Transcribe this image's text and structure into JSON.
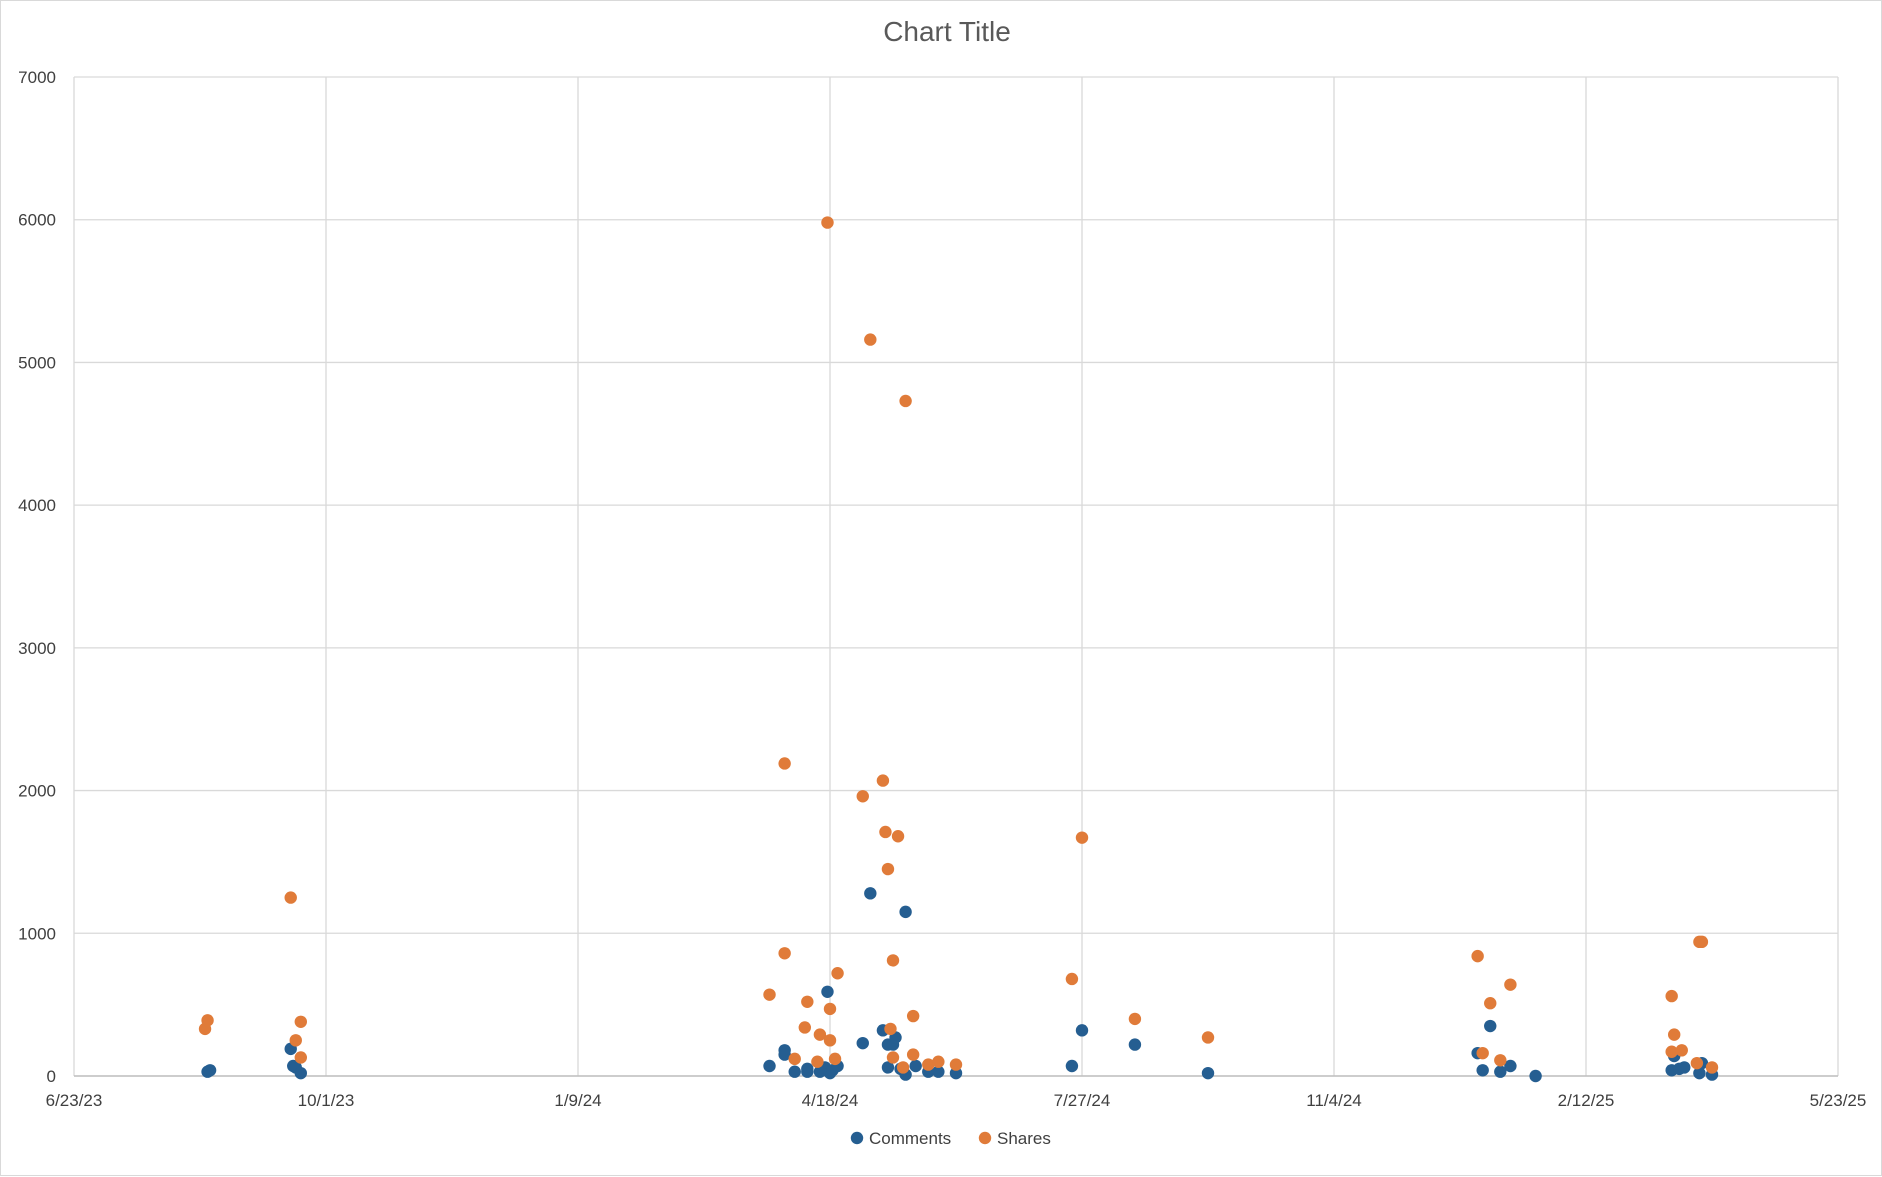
{
  "chart_data": {
    "type": "scatter",
    "title": "Chart Title",
    "xlabel": "",
    "ylabel": "",
    "x_axis_type": "date",
    "xlim": [
      "2023-06-23",
      "2025-05-23"
    ],
    "x_tick_labels": [
      "6/23/23",
      "10/1/23",
      "1/9/24",
      "4/18/24",
      "7/27/24",
      "11/4/24",
      "2/12/25",
      "5/23/25"
    ],
    "x_ticks": [
      "2023-06-23",
      "2023-10-01",
      "2024-01-09",
      "2024-04-18",
      "2024-07-27",
      "2024-11-04",
      "2025-02-12",
      "2025-05-23"
    ],
    "ylim": [
      0,
      7000
    ],
    "y_ticks": [
      0,
      1000,
      2000,
      3000,
      4000,
      5000,
      6000,
      7000
    ],
    "y_tick_labels": [
      "0",
      "1000",
      "2000",
      "3000",
      "4000",
      "5000",
      "6000",
      "7000"
    ],
    "grid": true,
    "legend_position": "bottom",
    "series": [
      {
        "name": "Comments",
        "color": "#255e91",
        "points": [
          [
            "2023-08-15",
            30
          ],
          [
            "2023-08-16",
            40
          ],
          [
            "2023-09-17",
            190
          ],
          [
            "2023-09-18",
            70
          ],
          [
            "2023-09-19",
            60
          ],
          [
            "2023-09-21",
            20
          ],
          [
            "2024-03-25",
            70
          ],
          [
            "2024-03-31",
            180
          ],
          [
            "2024-03-31",
            150
          ],
          [
            "2024-04-04",
            30
          ],
          [
            "2024-04-09",
            50
          ],
          [
            "2024-04-09",
            30
          ],
          [
            "2024-04-14",
            30
          ],
          [
            "2024-04-16",
            60
          ],
          [
            "2024-04-17",
            590
          ],
          [
            "2024-04-18",
            20
          ],
          [
            "2024-04-19",
            40
          ],
          [
            "2024-04-21",
            70
          ],
          [
            "2024-05-01",
            230
          ],
          [
            "2024-05-04",
            1280
          ],
          [
            "2024-05-09",
            320
          ],
          [
            "2024-05-11",
            220
          ],
          [
            "2024-05-11",
            60
          ],
          [
            "2024-05-13",
            220
          ],
          [
            "2024-05-14",
            270
          ],
          [
            "2024-05-16",
            50
          ],
          [
            "2024-05-18",
            10
          ],
          [
            "2024-05-22",
            70
          ],
          [
            "2024-05-18",
            1150
          ],
          [
            "2024-05-27",
            30
          ],
          [
            "2024-05-31",
            30
          ],
          [
            "2024-06-07",
            20
          ],
          [
            "2024-07-23",
            70
          ],
          [
            "2024-07-27",
            320
          ],
          [
            "2024-08-17",
            220
          ],
          [
            "2024-09-15",
            20
          ],
          [
            "2024-12-54",
            0
          ],
          [
            "2024-12-31",
            160
          ],
          [
            "2025-01-02",
            40
          ],
          [
            "2025-01-05",
            350
          ],
          [
            "2025-01-09",
            30
          ],
          [
            "2025-01-13",
            70
          ],
          [
            "2025-03-18",
            40
          ],
          [
            "2025-03-19",
            140
          ],
          [
            "2025-03-21",
            50
          ],
          [
            "2025-03-23",
            60
          ],
          [
            "2025-03-29",
            20
          ],
          [
            "2025-03-30",
            90
          ],
          [
            "2025-04-03",
            10
          ]
        ]
      },
      {
        "name": "Shares",
        "color": "#e07b39",
        "points": [
          [
            "2023-08-14",
            330
          ],
          [
            "2023-08-15",
            390
          ],
          [
            "2023-09-17",
            1250
          ],
          [
            "2023-09-19",
            250
          ],
          [
            "2023-09-21",
            380
          ],
          [
            "2023-09-21",
            130
          ],
          [
            "2024-03-25",
            570
          ],
          [
            "2024-03-31",
            860
          ],
          [
            "2024-03-31",
            2190
          ],
          [
            "2024-04-04",
            120
          ],
          [
            "2024-04-08",
            340
          ],
          [
            "2024-04-09",
            520
          ],
          [
            "2024-04-13",
            100
          ],
          [
            "2024-04-14",
            290
          ],
          [
            "2024-04-17",
            5980
          ],
          [
            "2024-04-18",
            470
          ],
          [
            "2024-04-18",
            250
          ],
          [
            "2024-04-20",
            120
          ],
          [
            "2024-04-21",
            720
          ],
          [
            "2024-05-01",
            1960
          ],
          [
            "2024-05-04",
            5160
          ],
          [
            "2024-05-09",
            2070
          ],
          [
            "2024-05-10",
            1710
          ],
          [
            "2024-05-11",
            1450
          ],
          [
            "2024-05-12",
            330
          ],
          [
            "2024-05-13",
            810
          ],
          [
            "2024-05-13",
            130
          ],
          [
            "2024-05-15",
            1680
          ],
          [
            "2024-05-18",
            4730
          ],
          [
            "2024-05-17",
            60
          ],
          [
            "2024-05-21",
            420
          ],
          [
            "2024-05-21",
            150
          ],
          [
            "2024-05-27",
            80
          ],
          [
            "2024-05-31",
            100
          ],
          [
            "2024-06-07",
            80
          ],
          [
            "2024-07-23",
            680
          ],
          [
            "2024-07-27",
            1670
          ],
          [
            "2024-08-17",
            400
          ],
          [
            "2024-09-15",
            270
          ],
          [
            "2024-12-31",
            840
          ],
          [
            "2025-01-02",
            160
          ],
          [
            "2025-01-05",
            510
          ],
          [
            "2025-01-09",
            110
          ],
          [
            "2025-01-13",
            640
          ],
          [
            "2025-03-18",
            170
          ],
          [
            "2025-03-18",
            560
          ],
          [
            "2025-03-19",
            290
          ],
          [
            "2025-03-22",
            180
          ],
          [
            "2025-03-28",
            90
          ],
          [
            "2025-03-29",
            940
          ],
          [
            "2025-03-30",
            940
          ],
          [
            "2025-04-03",
            60
          ]
        ]
      }
    ]
  }
}
